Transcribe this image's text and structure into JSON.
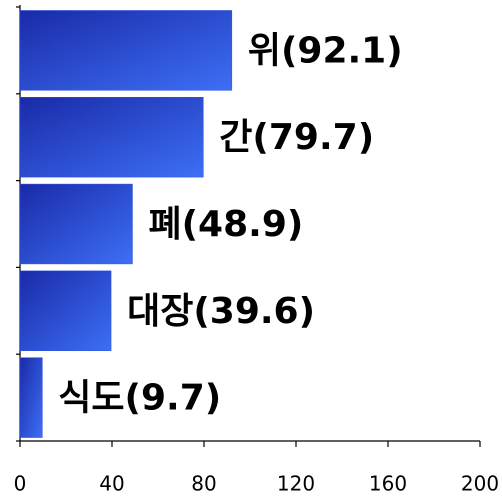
{
  "chart_data": {
    "type": "bar",
    "orientation": "horizontal",
    "values": [
      92.1,
      79.7,
      48.9,
      39.6,
      9.7
    ],
    "value_labels": [
      "위(92.1)",
      "간(79.7)",
      "폐(48.9)",
      "대장(39.6)",
      "식도(9.7)"
    ],
    "color": "#2a4fe0",
    "xlim": [
      0,
      200
    ],
    "xticks": [
      0,
      40,
      80,
      120,
      160,
      200
    ]
  }
}
